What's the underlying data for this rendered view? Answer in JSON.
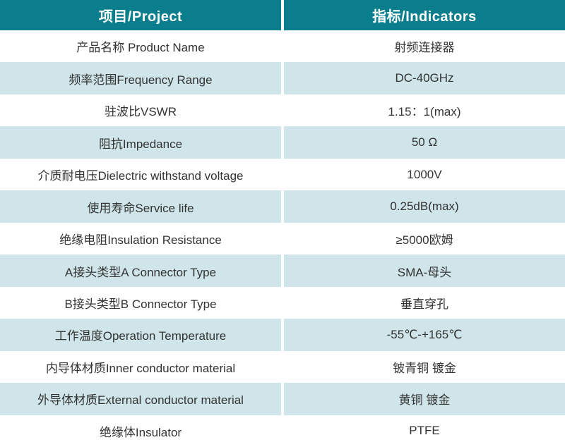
{
  "table": {
    "headers": [
      {
        "label": "项目/Project"
      },
      {
        "label": "指标/Indicators"
      }
    ],
    "rows": [
      {
        "project": "产品名称 Product Name",
        "indicator": "射频连接器"
      },
      {
        "project": "频率范围Frequency Range",
        "indicator": "DC-40GHz"
      },
      {
        "project": "驻波比VSWR",
        "indicator": "1.15：1(max)"
      },
      {
        "project": "阻抗Impedance",
        "indicator": "50 Ω"
      },
      {
        "project": "介质耐电压Dielectric withstand voltage",
        "indicator": "1000V"
      },
      {
        "project": "使用寿命Service life",
        "indicator": "0.25dB(max)"
      },
      {
        "project": "绝缘电阻Insulation Resistance",
        "indicator": "≥5000欧姆"
      },
      {
        "project": "A接头类型A Connector Type",
        "indicator": "SMA-母头"
      },
      {
        "project": "B接头类型B Connector Type",
        "indicator": "垂直穿孔"
      },
      {
        "project": "工作温度Operation Temperature",
        "indicator": "-55℃-+165℃"
      },
      {
        "project": "内导体材质Inner conductor material",
        "indicator": "铍青铜 镀金"
      },
      {
        "project": "外导体材质External conductor material",
        "indicator": "黄铜 镀金"
      },
      {
        "project": "绝缘体Insulator",
        "indicator": "PTFE"
      }
    ],
    "colors": {
      "header_bg": "#0a7e8c",
      "header_text": "#ffffff",
      "row_bg": "#ffffff",
      "row_alt_bg": "#cfe5e9",
      "body_text": "#333333",
      "divider": "#ffffff"
    }
  }
}
